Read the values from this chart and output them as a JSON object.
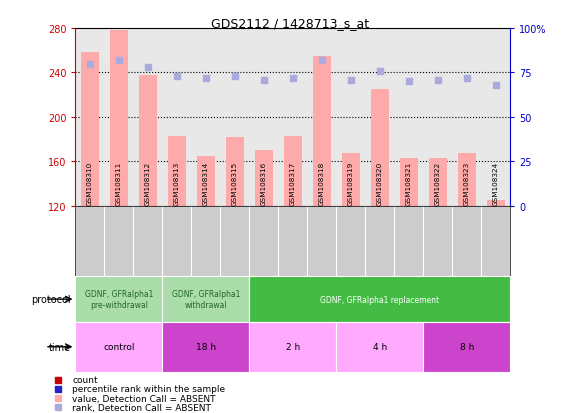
{
  "title": "GDS2112 / 1428713_s_at",
  "samples": [
    "GSM108310",
    "GSM108311",
    "GSM108312",
    "GSM108313",
    "GSM108314",
    "GSM108315",
    "GSM108316",
    "GSM108317",
    "GSM108318",
    "GSM108319",
    "GSM108320",
    "GSM108321",
    "GSM108322",
    "GSM108323",
    "GSM108324"
  ],
  "count_values": [
    258,
    278,
    238,
    183,
    165,
    182,
    170,
    183,
    255,
    168,
    225,
    163,
    163,
    168,
    125
  ],
  "rank_values": [
    80,
    82,
    78,
    73,
    72,
    73,
    71,
    72,
    82,
    71,
    76,
    70,
    71,
    72,
    68
  ],
  "absent_flags": [
    true,
    true,
    true,
    true,
    true,
    true,
    true,
    true,
    true,
    true,
    true,
    true,
    true,
    true,
    true
  ],
  "bar_color_absent": "#ffaaaa",
  "bar_color_present": "#ff3333",
  "dot_color_absent": "#aaaadd",
  "dot_color_present": "#2222cc",
  "ylim_left": [
    120,
    280
  ],
  "ylim_right": [
    0,
    100
  ],
  "yticks_left": [
    120,
    160,
    200,
    240,
    280
  ],
  "yticks_right": [
    0,
    25,
    50,
    75,
    100
  ],
  "hlines": [
    160,
    200,
    240
  ],
  "axis_color_left": "#cc0000",
  "axis_color_right": "#0000cc",
  "plot_bg": "#e8e8e8",
  "sample_bg": "#cccccc",
  "protocol_groups": [
    {
      "label": "GDNF, GFRalpha1\npre-withdrawal",
      "start": 0,
      "end": 3,
      "color": "#aaddaa",
      "text_color": "#226622"
    },
    {
      "label": "GDNF, GFRalpha1\nwithdrawal",
      "start": 3,
      "end": 6,
      "color": "#aaddaa",
      "text_color": "#226622"
    },
    {
      "label": "GDNF, GFRalpha1 replacement",
      "start": 6,
      "end": 15,
      "color": "#44bb44",
      "text_color": "#ffffff"
    }
  ],
  "time_groups": [
    {
      "label": "control",
      "start": 0,
      "end": 3,
      "color": "#ffaaff"
    },
    {
      "label": "18 h",
      "start": 3,
      "end": 6,
      "color": "#cc44cc"
    },
    {
      "label": "2 h",
      "start": 6,
      "end": 9,
      "color": "#ffaaff"
    },
    {
      "label": "4 h",
      "start": 9,
      "end": 12,
      "color": "#ffaaff"
    },
    {
      "label": "8 h",
      "start": 12,
      "end": 15,
      "color": "#cc44cc"
    }
  ],
  "legend_items": [
    {
      "label": "count",
      "color": "#cc0000"
    },
    {
      "label": "percentile rank within the sample",
      "color": "#2222cc"
    },
    {
      "label": "value, Detection Call = ABSENT",
      "color": "#ffaaaa"
    },
    {
      "label": "rank, Detection Call = ABSENT",
      "color": "#aaaadd"
    }
  ]
}
